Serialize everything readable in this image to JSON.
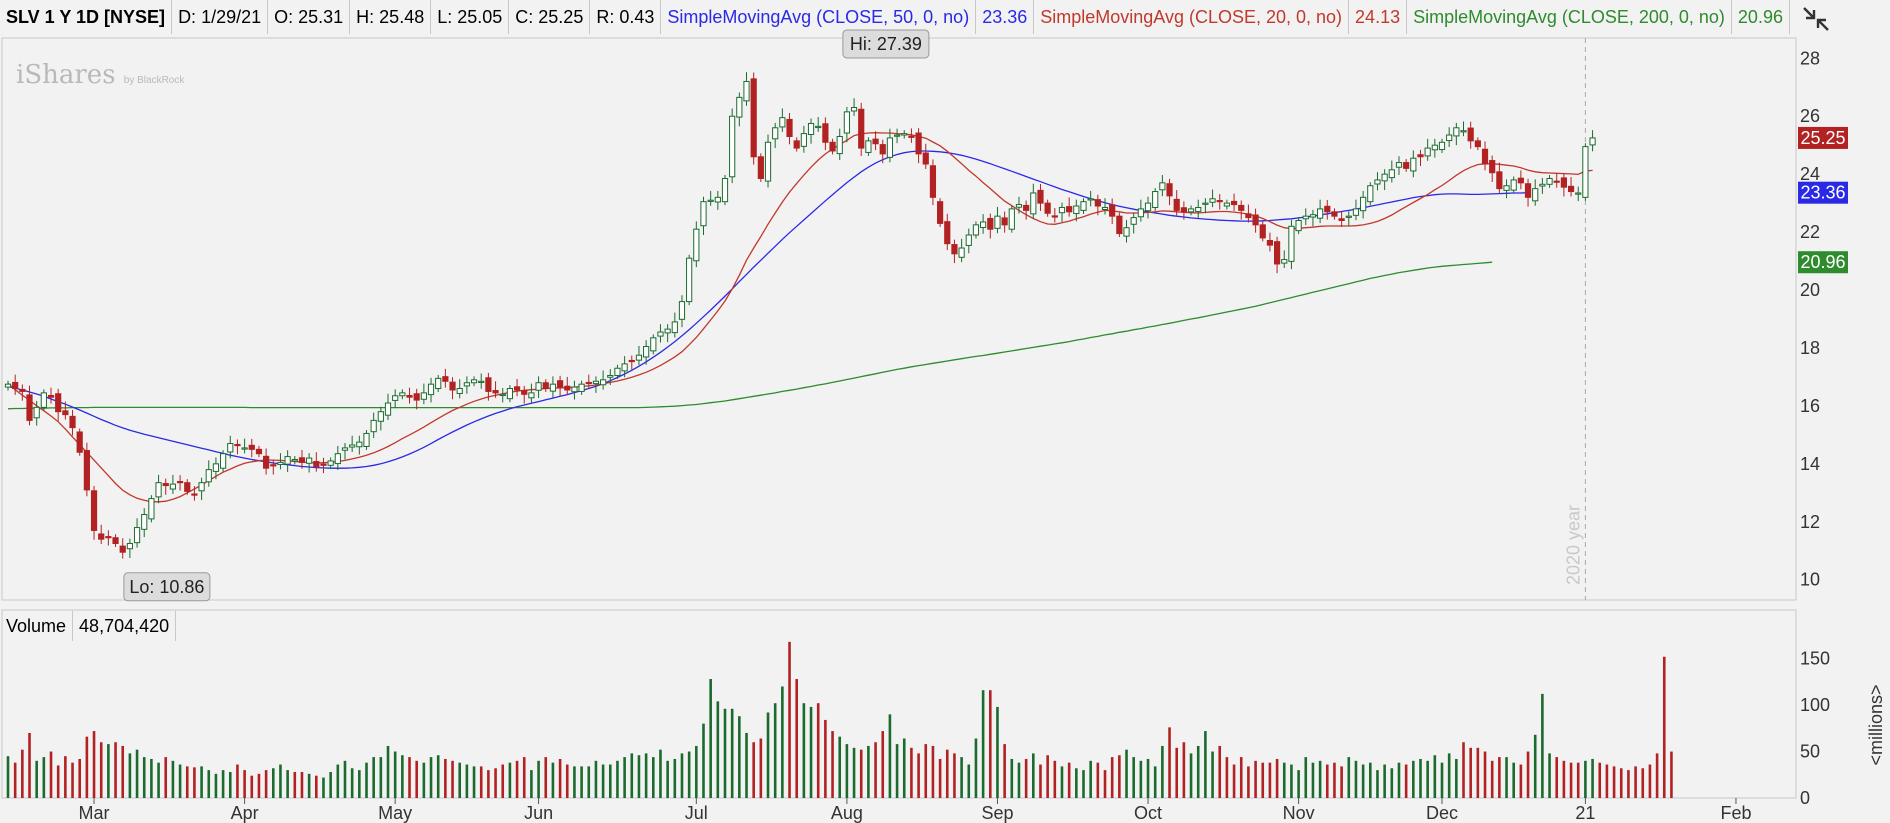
{
  "header": {
    "symbol": "SLV 1 Y 1D [NYSE]",
    "date": "D: 1/29/21",
    "open": "O: 25.31",
    "high": "H: 25.48",
    "low": "L: 25.05",
    "close": "C: 25.25",
    "range": "R: 0.43",
    "sma50_label": "SimpleMovingAvg (CLOSE, 50, 0, no)",
    "sma50_value": "23.36",
    "sma20_label": "SimpleMovingAvg (CLOSE, 20, 0, no)",
    "sma20_value": "24.13",
    "sma200_label": "SimpleMovingAvg (CLOSE, 200, 0, no)",
    "sma200_value": "20.96"
  },
  "brand": {
    "name": "iShares",
    "sub": "by BlackRock"
  },
  "tool_icon": "collapse-arrows-icon",
  "volume_panel": {
    "label": "Volume",
    "value": "48,704,420",
    "axis_label": "<millions>"
  },
  "colors": {
    "up": "#1b6b2f",
    "down": "#b22222",
    "sma50": "#2a2ae6",
    "sma20": "#c0392b",
    "sma200": "#2e8b2e",
    "up_candle_fill": "#ffffff"
  },
  "chart_data": {
    "type": "candlestick",
    "price_axis": {
      "ticks": [
        10,
        12,
        14,
        16,
        18,
        20,
        22,
        24,
        26,
        28
      ],
      "ylim": [
        9.3,
        28.7
      ]
    },
    "volume_axis": {
      "ticks": [
        0,
        50,
        100,
        150
      ],
      "ylim": [
        0,
        170
      ]
    },
    "x_labels": [
      "Mar",
      "Apr",
      "May",
      "Jun",
      "Jul",
      "Aug",
      "Sep",
      "Oct",
      "Nov",
      "Dec",
      "21",
      "Feb"
    ],
    "x_label_index": [
      12,
      33,
      54,
      74,
      96,
      117,
      138,
      159,
      180,
      200,
      220,
      241
    ],
    "annotations": [
      {
        "text": "Hi: 27.39",
        "index": 117,
        "value": 27.39
      },
      {
        "text": "Lo: 10.86",
        "index": 17,
        "value": 10.86
      },
      {
        "text": "2020 year",
        "index": 220
      }
    ],
    "price_badges": [
      {
        "value": 25.25,
        "text": "25.25",
        "kind": "close"
      },
      {
        "value": 23.36,
        "text": "23.36",
        "kind": "sma50"
      },
      {
        "value": 20.96,
        "text": "20.96",
        "kind": "sma200"
      }
    ],
    "closes": [
      16.75,
      16.6,
      16.5,
      15.5,
      15.95,
      16.45,
      16.3,
      15.8,
      15.7,
      15.25,
      14.4,
      13.1,
      11.7,
      11.4,
      11.45,
      11.25,
      10.95,
      11.25,
      11.8,
      12.25,
      12.8,
      13.35,
      13.25,
      13.3,
      13.35,
      13.05,
      12.95,
      13.35,
      13.8,
      14.0,
      14.35,
      14.7,
      14.65,
      14.55,
      14.5,
      14.35,
      13.85,
      13.95,
      14.05,
      14.25,
      14.15,
      14.05,
      14.2,
      13.9,
      13.95,
      14.1,
      14.35,
      14.55,
      14.65,
      14.75,
      15.05,
      15.5,
      15.8,
      16.1,
      16.35,
      16.45,
      16.3,
      16.2,
      16.45,
      16.75,
      16.95,
      16.85,
      16.55,
      16.6,
      16.8,
      16.9,
      16.85,
      16.5,
      16.45,
      16.4,
      16.6,
      16.55,
      16.4,
      16.45,
      16.8,
      16.6,
      16.75,
      16.65,
      16.55,
      16.65,
      16.75,
      16.8,
      16.85,
      16.9,
      17.05,
      17.3,
      17.45,
      17.55,
      17.75,
      18.05,
      18.35,
      18.55,
      18.65,
      18.9,
      19.6,
      21.1,
      22.1,
      23.05,
      23.1,
      23.2,
      23.85,
      26.0,
      26.65,
      27.2,
      24.6,
      23.85,
      25.1,
      25.6,
      25.95,
      25.3,
      24.9,
      25.4,
      25.75,
      25.65,
      25.1,
      24.8,
      25.3,
      26.15,
      26.3,
      24.9,
      25.15,
      25.05,
      24.7,
      25.25,
      25.35,
      25.4,
      25.3,
      24.7,
      24.35,
      23.2,
      22.3,
      21.6,
      21.25,
      21.45,
      21.9,
      22.25,
      22.35,
      22.1,
      22.55,
      22.25,
      22.8,
      22.95,
      22.75,
      23.35,
      23.0,
      22.65,
      22.55,
      22.85,
      22.7,
      22.9,
      23.05,
      23.15,
      22.9,
      22.85,
      22.55,
      21.95,
      22.15,
      22.5,
      22.8,
      23.0,
      23.4,
      23.7,
      23.25,
      22.75,
      22.7,
      22.8,
      22.85,
      23.0,
      23.15,
      23.05,
      23.0,
      22.95,
      22.75,
      22.5,
      22.25,
      21.8,
      21.55,
      20.9,
      21.05,
      22.2,
      22.4,
      22.55,
      22.6,
      22.8,
      22.7,
      22.55,
      22.4,
      22.55,
      22.8,
      23.2,
      23.6,
      23.8,
      24.0,
      24.15,
      24.4,
      24.2,
      24.55,
      24.6,
      24.9,
      25.0,
      25.1,
      25.35,
      25.6,
      25.5,
      25.15,
      24.95,
      24.35,
      24.05,
      23.5,
      23.6,
      23.8,
      23.7,
      23.2,
      23.5,
      23.65,
      23.85,
      23.75,
      23.55,
      23.4,
      23.35,
      24.95,
      25.25
    ],
    "sma20": [
      16.78,
      16.56,
      16.37,
      16.2,
      16.0,
      15.83,
      15.65,
      15.45,
      15.2,
      14.93,
      14.66,
      14.39,
      14.13,
      13.86,
      13.59,
      13.32,
      13.09,
      12.93,
      12.81,
      12.74,
      12.69,
      12.69,
      12.71,
      12.78,
      12.87,
      13.0,
      13.13,
      13.27,
      13.42,
      13.57,
      13.71,
      13.82,
      13.93,
      14.02,
      14.07,
      14.11,
      14.13,
      14.13,
      14.12,
      14.1,
      14.08,
      14.06,
      14.04,
      14.03,
      14.04,
      14.05,
      14.08,
      14.12,
      14.17,
      14.23,
      14.3,
      14.38,
      14.48,
      14.6,
      14.73,
      14.87,
      15.0,
      15.13,
      15.27,
      15.42,
      15.57,
      15.71,
      15.84,
      15.95,
      16.06,
      16.16,
      16.24,
      16.31,
      16.37,
      16.42,
      16.47,
      16.51,
      16.54,
      16.56,
      16.58,
      16.6,
      16.61,
      16.62,
      16.63,
      16.65,
      16.67,
      16.69,
      16.72,
      16.76,
      16.81,
      16.86,
      16.92,
      16.99,
      17.07,
      17.16,
      17.27,
      17.4,
      17.54,
      17.69,
      17.87,
      18.11,
      18.36,
      18.66,
      18.97,
      19.28,
      19.62,
      20.04,
      20.51,
      21.03,
      21.45,
      21.85,
      22.27,
      22.66,
      23.04,
      23.38,
      23.68,
      23.97,
      24.24,
      24.49,
      24.7,
      24.87,
      25.02,
      25.17,
      25.33,
      25.39,
      25.42,
      25.43,
      25.42,
      25.42,
      25.4,
      25.38,
      25.36,
      25.3,
      25.24,
      25.11,
      24.98,
      24.79,
      24.58,
      24.36,
      24.13,
      23.93,
      23.71,
      23.5,
      23.28,
      23.07,
      22.91,
      22.75,
      22.6,
      22.47,
      22.36,
      22.28,
      22.27,
      22.32,
      22.38,
      22.46,
      22.53,
      22.62,
      22.69,
      22.75,
      22.73,
      22.7,
      22.66,
      22.66,
      22.66,
      22.68,
      22.7,
      22.73,
      22.72,
      22.7,
      22.68,
      22.67,
      22.66,
      22.68,
      22.7,
      22.71,
      22.71,
      22.69,
      22.66,
      22.62,
      22.56,
      22.47,
      22.36,
      22.24,
      22.15,
      22.12,
      22.13,
      22.15,
      22.17,
      22.2,
      22.21,
      22.21,
      22.21,
      22.21,
      22.22,
      22.25,
      22.3,
      22.37,
      22.47,
      22.59,
      22.74,
      22.88,
      23.02,
      23.16,
      23.3,
      23.46,
      23.61,
      23.78,
      23.96,
      24.12,
      24.24,
      24.33,
      24.36,
      24.36,
      24.34,
      24.31,
      24.28,
      24.22,
      24.14,
      24.08,
      24.05,
      24.04,
      24.03,
      24.02,
      24.01,
      23.99,
      24.11,
      24.13
    ],
    "sma50": [
      16.67,
      16.61,
      16.55,
      16.48,
      16.41,
      16.33,
      16.24,
      16.15,
      16.06,
      15.96,
      15.86,
      15.75,
      15.64,
      15.53,
      15.43,
      15.33,
      15.24,
      15.16,
      15.09,
      15.02,
      14.96,
      14.9,
      14.84,
      14.78,
      14.72,
      14.66,
      14.6,
      14.54,
      14.48,
      14.42,
      14.36,
      14.3,
      14.25,
      14.2,
      14.15,
      14.11,
      14.07,
      14.03,
      14.0,
      13.97,
      13.94,
      13.91,
      13.89,
      13.87,
      13.86,
      13.85,
      13.85,
      13.85,
      13.86,
      13.88,
      13.91,
      13.95,
      14.0,
      14.07,
      14.15,
      14.24,
      14.34,
      14.45,
      14.57,
      14.7,
      14.84,
      14.97,
      15.1,
      15.22,
      15.34,
      15.45,
      15.55,
      15.65,
      15.74,
      15.82,
      15.9,
      15.97,
      16.03,
      16.09,
      16.15,
      16.21,
      16.27,
      16.33,
      16.39,
      16.46,
      16.53,
      16.6,
      16.68,
      16.77,
      16.87,
      16.98,
      17.1,
      17.23,
      17.37,
      17.52,
      17.68,
      17.85,
      18.03,
      18.22,
      18.42,
      18.63,
      18.85,
      19.08,
      19.31,
      19.55,
      19.79,
      20.04,
      20.29,
      20.54,
      20.79,
      21.03,
      21.27,
      21.51,
      21.75,
      21.98,
      22.2,
      22.42,
      22.64,
      22.86,
      23.08,
      23.29,
      23.5,
      23.71,
      23.9,
      24.08,
      24.24,
      24.38,
      24.5,
      24.6,
      24.68,
      24.74,
      24.78,
      24.8,
      24.8,
      24.79,
      24.77,
      24.74,
      24.7,
      24.65,
      24.59,
      24.52,
      24.44,
      24.36,
      24.27,
      24.19,
      24.1,
      24.01,
      23.92,
      23.83,
      23.74,
      23.65,
      23.56,
      23.47,
      23.39,
      23.31,
      23.23,
      23.15,
      23.08,
      23.01,
      22.95,
      22.89,
      22.84,
      22.79,
      22.74,
      22.7,
      22.66,
      22.62,
      22.58,
      22.55,
      22.52,
      22.49,
      22.47,
      22.45,
      22.43,
      22.41,
      22.4,
      22.39,
      22.38,
      22.38,
      22.38,
      22.39,
      22.4,
      22.42,
      22.44,
      22.46,
      22.49,
      22.52,
      22.55,
      22.59,
      22.63,
      22.67,
      22.71,
      22.75,
      22.79,
      22.84,
      22.89,
      22.94,
      22.99,
      23.04,
      23.09,
      23.14,
      23.19,
      23.23,
      23.26,
      23.29,
      23.31,
      23.32,
      23.32,
      23.31,
      23.3,
      23.3,
      23.31,
      23.32,
      23.33,
      23.34,
      23.35,
      23.35,
      23.36
    ],
    "sma200": [
      15.9,
      15.91,
      15.91,
      15.92,
      15.92,
      15.92,
      15.93,
      15.93,
      15.93,
      15.94,
      15.94,
      15.94,
      15.95,
      15.95,
      15.95,
      15.95,
      15.95,
      15.95,
      15.95,
      15.95,
      15.95,
      15.95,
      15.95,
      15.95,
      15.95,
      15.95,
      15.95,
      15.95,
      15.95,
      15.95,
      15.95,
      15.95,
      15.95,
      15.95,
      15.94,
      15.94,
      15.94,
      15.94,
      15.94,
      15.94,
      15.94,
      15.94,
      15.94,
      15.94,
      15.94,
      15.94,
      15.94,
      15.94,
      15.94,
      15.94,
      15.94,
      15.94,
      15.94,
      15.94,
      15.94,
      15.94,
      15.94,
      15.94,
      15.94,
      15.94,
      15.94,
      15.94,
      15.94,
      15.94,
      15.94,
      15.94,
      15.94,
      15.94,
      15.94,
      15.94,
      15.94,
      15.94,
      15.94,
      15.94,
      15.94,
      15.94,
      15.94,
      15.94,
      15.94,
      15.94,
      15.94,
      15.94,
      15.94,
      15.94,
      15.94,
      15.94,
      15.94,
      15.94,
      15.94,
      15.95,
      15.96,
      15.97,
      15.98,
      15.99,
      16.01,
      16.03,
      16.05,
      16.08,
      16.11,
      16.14,
      16.17,
      16.21,
      16.25,
      16.29,
      16.33,
      16.37,
      16.41,
      16.45,
      16.5,
      16.54,
      16.58,
      16.63,
      16.67,
      16.72,
      16.76,
      16.81,
      16.86,
      16.91,
      16.96,
      17.01,
      17.06,
      17.11,
      17.16,
      17.21,
      17.26,
      17.3,
      17.35,
      17.39,
      17.43,
      17.47,
      17.51,
      17.55,
      17.59,
      17.63,
      17.67,
      17.71,
      17.74,
      17.78,
      17.82,
      17.86,
      17.9,
      17.94,
      17.98,
      18.02,
      18.06,
      18.1,
      18.14,
      18.18,
      18.22,
      18.27,
      18.31,
      18.36,
      18.4,
      18.45,
      18.49,
      18.54,
      18.58,
      18.63,
      18.67,
      18.72,
      18.76,
      18.81,
      18.85,
      18.9,
      18.95,
      19.0,
      19.04,
      19.09,
      19.14,
      19.19,
      19.24,
      19.29,
      19.34,
      19.39,
      19.44,
      19.5,
      19.56,
      19.62,
      19.68,
      19.74,
      19.8,
      19.86,
      19.92,
      19.98,
      20.04,
      20.1,
      20.16,
      20.22,
      20.28,
      20.34,
      20.4,
      20.45,
      20.5,
      20.55,
      20.6,
      20.64,
      20.68,
      20.72,
      20.76,
      20.79,
      20.82,
      20.84,
      20.86,
      20.88,
      20.9,
      20.92,
      20.94,
      20.96
    ],
    "volumes": [
      45,
      38,
      52,
      70,
      40,
      44,
      50,
      35,
      45,
      38,
      42,
      66,
      72,
      60,
      58,
      60,
      56,
      48,
      52,
      44,
      42,
      38,
      44,
      40,
      36,
      34,
      33,
      34,
      30,
      26,
      30,
      28,
      36,
      30,
      24,
      26,
      30,
      32,
      36,
      30,
      28,
      28,
      26,
      24,
      22,
      28,
      36,
      40,
      32,
      30,
      38,
      44,
      44,
      56,
      50,
      46,
      44,
      40,
      38,
      44,
      46,
      42,
      40,
      38,
      36,
      34,
      34,
      30,
      32,
      36,
      38,
      40,
      44,
      30,
      40,
      44,
      38,
      42,
      36,
      34,
      34,
      34,
      40,
      36,
      36,
      40,
      44,
      48,
      46,
      48,
      44,
      52,
      40,
      42,
      48,
      50,
      56,
      80,
      128,
      104,
      96,
      96,
      88,
      70,
      60,
      64,
      92,
      102,
      120,
      168,
      128,
      102,
      98,
      102,
      84,
      72,
      66,
      58,
      54,
      52,
      56,
      60,
      72,
      90,
      58,
      64,
      54,
      48,
      58,
      56,
      42,
      52,
      48,
      44,
      36,
      64,
      116,
      116,
      98,
      58,
      42,
      38,
      42,
      48,
      36,
      46,
      40,
      34,
      38,
      32,
      30,
      40,
      38,
      30,
      44,
      46,
      52,
      44,
      40,
      42,
      34,
      56,
      76,
      54,
      60,
      48,
      56,
      72,
      50,
      56,
      44,
      36,
      44,
      34,
      40,
      38,
      38,
      42,
      38,
      36,
      30,
      44,
      38,
      40,
      36,
      38,
      34,
      44,
      40,
      36,
      38,
      30,
      36,
      32,
      38,
      36,
      40,
      42,
      40,
      46,
      38,
      48,
      42,
      60,
      54,
      54,
      50,
      40,
      44,
      44,
      38,
      36,
      50,
      68,
      112,
      48,
      44,
      40,
      38,
      38,
      40,
      42,
      38,
      36,
      34,
      32,
      30,
      34,
      32,
      36,
      48,
      152,
      50
    ]
  }
}
